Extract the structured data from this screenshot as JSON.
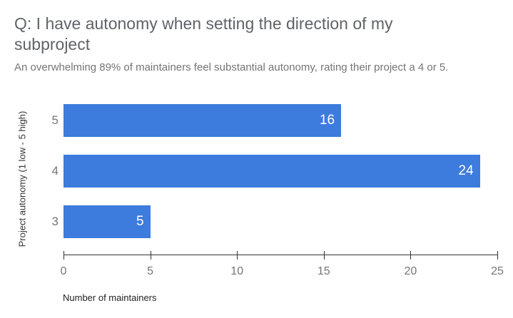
{
  "chart_data": {
    "type": "bar",
    "orientation": "horizontal",
    "title": "Q: I have autonomy when setting the direction of my subproject",
    "subtitle": "An overwhelming 89% of maintainers feel substantial autonomy, rating their project a 4 or 5.",
    "categories": [
      "5",
      "4",
      "3"
    ],
    "values": [
      16,
      24,
      5
    ],
    "value_labels": [
      "16",
      "24",
      "5"
    ],
    "ylabel": "Project autonomy (1 low - 5 high)",
    "xlabel": "Number of maintainers",
    "xlim": [
      0,
      25
    ],
    "xticks": [
      0,
      5,
      10,
      15,
      20,
      25
    ],
    "grid": false,
    "legend": "none",
    "colors": {
      "bar": "#3d7bdd",
      "value_label": "#ffffff",
      "axis_line": "#333333",
      "tick_label": "#757575",
      "category_label": "#757575",
      "title_text": "#5f6368",
      "subtitle_text": "#757575",
      "background": "#ffffff"
    }
  }
}
